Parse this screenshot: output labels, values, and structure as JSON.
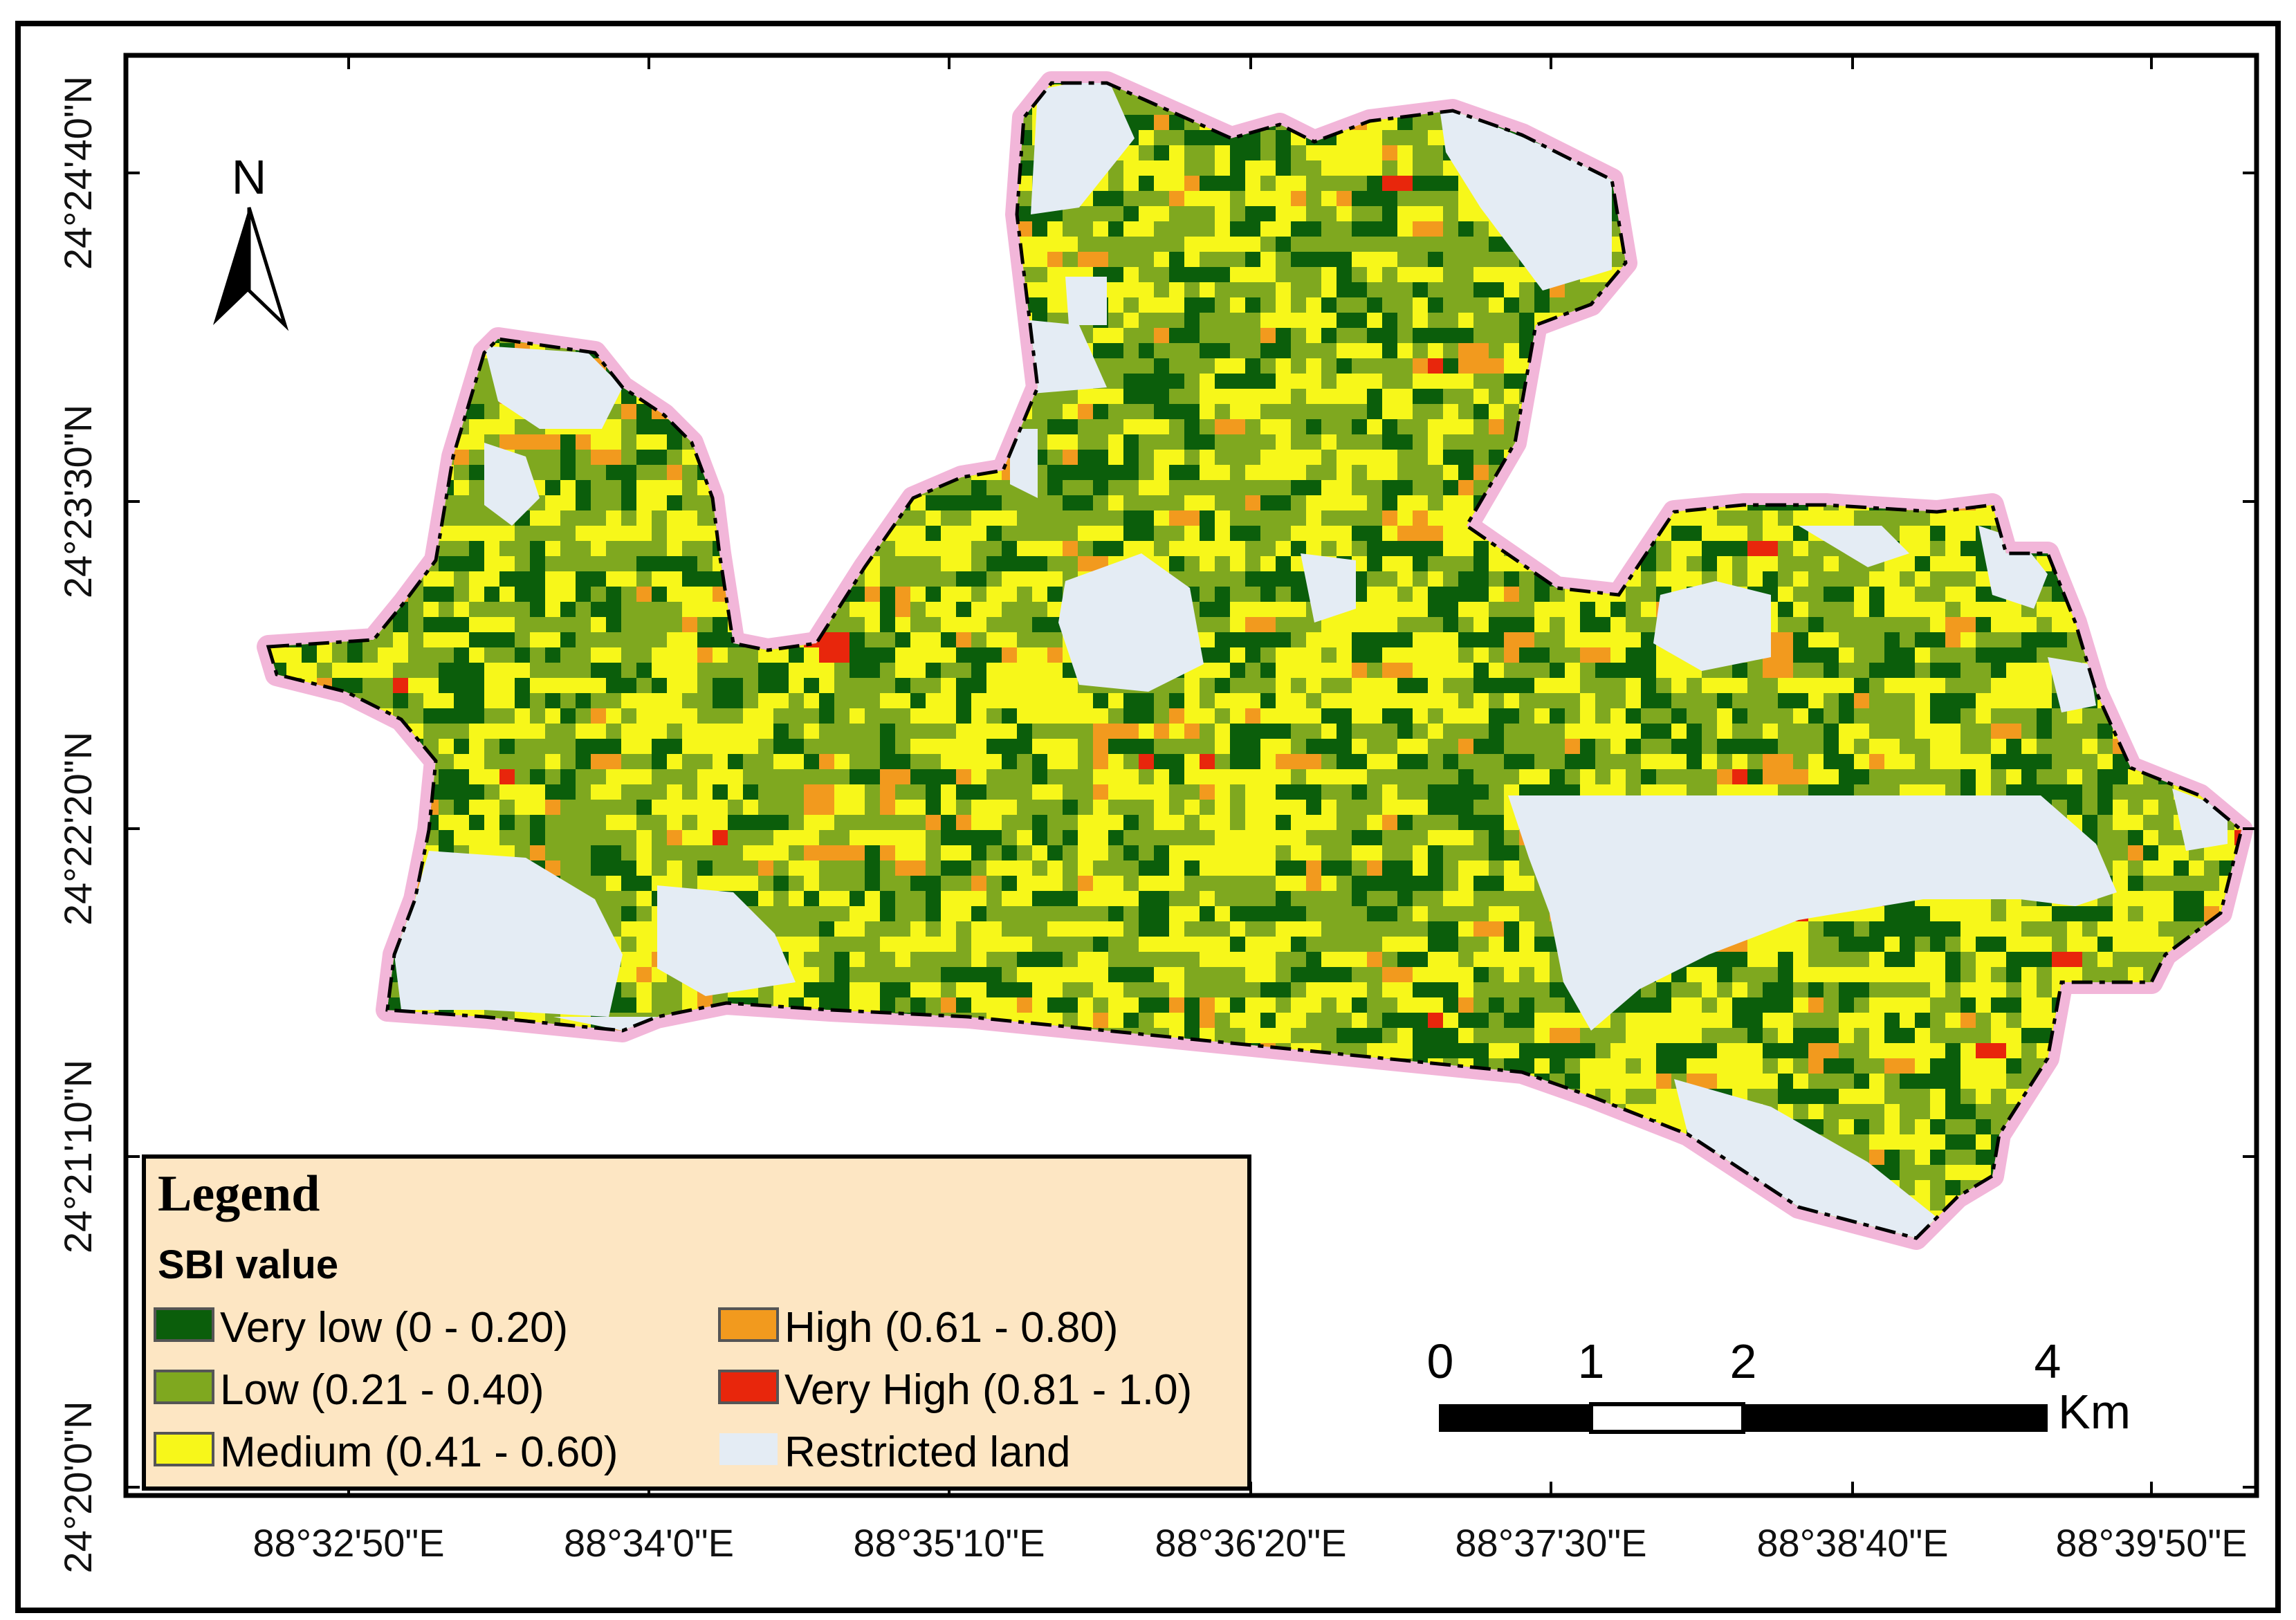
{
  "colors": {
    "very_low": "#0b5e0b",
    "low": "#7fa81f",
    "medium": "#f7f71a",
    "high": "#f29a1e",
    "very_high": "#e8260c",
    "restricted": "#e4ecf4",
    "boundary": "#f2b6d9",
    "legend_bg": "#fde6c3"
  },
  "north_arrow": {
    "label": "N",
    "icon": "north-arrow-icon"
  },
  "axes": {
    "top_ticks": 7,
    "right_ticks": 5,
    "longitude_labels": [
      "88°32'50\"E",
      "88°34'0\"E",
      "88°35'10\"E",
      "88°36'20\"E",
      "88°37'30\"E",
      "88°38'40\"E",
      "88°39'50\"E"
    ],
    "latitude_labels": [
      "24°24'40\"N",
      "24°23'30\"N",
      "24°22'20\"N",
      "24°21'10\"N",
      "24°20'0\"N"
    ]
  },
  "legend": {
    "title": "Legend",
    "subtitle": "SBI value",
    "items": [
      {
        "label": "Very low (0 - 0.20)",
        "class": "very_low"
      },
      {
        "label": "Low (0.21 - 0.40)",
        "class": "low"
      },
      {
        "label": "Medium (0.41 - 0.60)",
        "class": "medium"
      },
      {
        "label": "High (0.61 - 0.80)",
        "class": "high"
      },
      {
        "label": "Very High (0.81 - 1.0)",
        "class": "very_high"
      },
      {
        "label": "Restricted land",
        "class": "restricted"
      }
    ]
  },
  "scale_bar": {
    "labels": [
      "0",
      "1",
      "2",
      "4"
    ],
    "unit": "Km"
  }
}
